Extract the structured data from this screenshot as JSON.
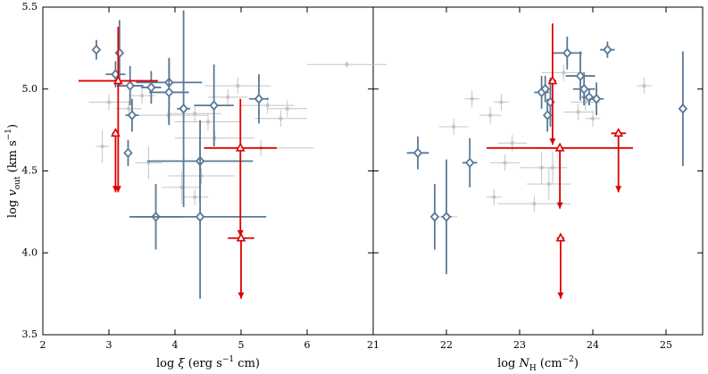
{
  "chart_data": [
    {
      "type": "scatter",
      "x_label": [
        {
          "text": "log "
        },
        {
          "text": "ξ",
          "style": "italic"
        },
        {
          "text": " (erg s"
        },
        {
          "text": "−1",
          "style": "sup"
        },
        {
          "text": " cm)"
        }
      ],
      "y_label": [
        {
          "text": "log "
        },
        {
          "text": "v",
          "style": "italic"
        },
        {
          "text": "out",
          "style": "sub"
        },
        {
          "text": " (km s"
        },
        {
          "text": "−1",
          "style": "sup"
        },
        {
          "text": ")"
        }
      ],
      "xlim": [
        2,
        7
      ],
      "xticks": [
        2,
        3,
        4,
        5,
        6
      ],
      "ylim": [
        3.5,
        5.5
      ],
      "yticks": [
        3.5,
        {
          "value": 4,
          "label": "4.0"
        },
        4.5,
        {
          "value": 5,
          "label": "5.0"
        },
        5.5
      ],
      "series": [
        {
          "color": "#c4c4c4",
          "marker": "dot",
          "x": [
            3.0,
            3.3,
            3.5,
            3.9,
            4.3,
            4.5,
            4.8,
            4.95,
            5.4,
            5.7,
            4.6,
            5.3,
            4.1,
            4.3,
            6.6,
            2.9,
            3.6,
            4.4,
            5.6
          ],
          "y": [
            4.92,
            4.88,
            4.96,
            4.84,
            4.85,
            4.8,
            4.95,
            5.02,
            4.9,
            4.88,
            4.7,
            4.64,
            4.4,
            4.34,
            5.15,
            4.65,
            4.55,
            4.47,
            4.82
          ],
          "xerr": [
            0.3,
            0.2,
            0.2,
            0.6,
            0.4,
            0.5,
            0.3,
            0.5,
            0.4,
            0.3,
            0.6,
            0.8,
            0.3,
            0.2,
            0.6,
            0.1,
            0.2,
            0.5,
            0.4
          ],
          "yerr": [
            0.05,
            0.05,
            0.05,
            0.05,
            0.05,
            0.05,
            0.05,
            0.05,
            0.05,
            0.05,
            0.05,
            0.05,
            0.1,
            0.05,
            0.02,
            0.1,
            0.1,
            0.05,
            0.05
          ]
        },
        {
          "color": "#5a7896",
          "marker": "diamond",
          "x": [
            2.81,
            3.16,
            3.1,
            3.32,
            3.64,
            3.91,
            3.91,
            4.13,
            4.59,
            5.27,
            3.35,
            3.29,
            4.38,
            3.71,
            4.38
          ],
          "y": [
            5.24,
            5.22,
            5.09,
            5.02,
            5.01,
            5.04,
            4.98,
            4.88,
            4.9,
            4.94,
            4.84,
            4.61,
            4.56,
            4.22,
            4.22
          ],
          "xerr": [
            0.05,
            0.04,
            0.15,
            0.2,
            0.15,
            0.5,
            0.3,
            0.1,
            0.3,
            0.15,
            0.1,
            0.06,
            0.8,
            0.4,
            1.0
          ],
          "yerr": [
            0.06,
            0.2,
            0.08,
            0.12,
            0.1,
            0.15,
            0.2,
            0.6,
            0.25,
            0.15,
            0.1,
            0.08,
            0.25,
            0.2,
            0.5
          ]
        },
        {
          "color": "#dd0000",
          "marker": "triangle",
          "upper_limit": true,
          "x": [
            3.14,
            3.1,
            4.99,
            5.0
          ],
          "y": [
            5.05,
            4.73,
            4.64,
            4.09
          ],
          "xerr": [
            0.6,
            0.05,
            0.55,
            0.2
          ],
          "yerr": [
            0.33,
            0.0,
            0.3,
            0.0
          ],
          "ylow": [
            4.37,
            4.37,
            4.1,
            3.72
          ]
        }
      ]
    },
    {
      "type": "scatter",
      "x_label": [
        {
          "text": "log "
        },
        {
          "text": "N",
          "style": "italic"
        },
        {
          "text": "H",
          "style": "sub"
        },
        {
          "text": " (cm"
        },
        {
          "text": "−2",
          "style": "sup"
        },
        {
          "text": ")"
        }
      ],
      "xlim": [
        21,
        25.5
      ],
      "xticks": [
        21,
        22,
        23,
        24,
        25
      ],
      "ylim": [
        3.5,
        5.5
      ],
      "series": [
        {
          "color": "#c4c4c4",
          "marker": "dot",
          "x": [
            22.35,
            22.6,
            22.75,
            22.9,
            22.8,
            22.1,
            22.0,
            22.65,
            23.3,
            23.4,
            23.45,
            23.6,
            23.8,
            24.0,
            24.7,
            23.2,
            23.9
          ],
          "y": [
            4.94,
            4.84,
            4.92,
            4.67,
            4.55,
            4.77,
            4.22,
            4.34,
            4.52,
            4.42,
            4.52,
            5.1,
            4.86,
            4.82,
            5.02,
            4.3,
            4.92
          ],
          "xerr": [
            0.1,
            0.15,
            0.1,
            0.2,
            0.2,
            0.2,
            0.15,
            0.1,
            0.3,
            0.3,
            0.2,
            0.3,
            0.2,
            0.1,
            0.1,
            0.5,
            0.2
          ],
          "yerr": [
            0.05,
            0.05,
            0.05,
            0.05,
            0.05,
            0.05,
            0.3,
            0.05,
            0.1,
            0.1,
            0.1,
            0.05,
            0.05,
            0.05,
            0.05,
            0.05,
            0.05
          ]
        },
        {
          "color": "#5a7896",
          "marker": "diamond",
          "x": [
            21.61,
            21.84,
            22.0,
            22.32,
            23.3,
            23.38,
            23.42,
            23.65,
            23.83,
            23.88,
            23.95,
            24.05,
            24.2,
            25.23,
            23.35
          ],
          "y": [
            4.61,
            4.22,
            4.22,
            4.55,
            4.98,
            4.84,
            4.92,
            5.22,
            5.08,
            5.0,
            4.95,
            4.94,
            5.24,
            4.88,
            5.0
          ],
          "xerr": [
            0.15,
            0.05,
            0.07,
            0.1,
            0.1,
            0.05,
            0.05,
            0.2,
            0.2,
            0.15,
            0.1,
            0.1,
            0.1,
            0.05,
            0.05
          ],
          "yerr": [
            0.1,
            0.2,
            0.35,
            0.15,
            0.1,
            0.1,
            0.15,
            0.1,
            0.15,
            0.1,
            0.05,
            0.1,
            0.05,
            0.35,
            0.08
          ]
        },
        {
          "color": "#dd0000",
          "marker": "triangle",
          "upper_limit": true,
          "x": [
            23.45,
            23.55,
            23.56,
            24.35
          ],
          "y": [
            5.05,
            4.64,
            4.09,
            4.73
          ],
          "xerr": [
            0.05,
            1.0,
            0.05,
            0.1
          ],
          "yerr": [
            0.35,
            0.0,
            0.0,
            0.0
          ],
          "ylow": [
            4.66,
            4.27,
            3.72,
            4.37
          ]
        }
      ]
    }
  ]
}
